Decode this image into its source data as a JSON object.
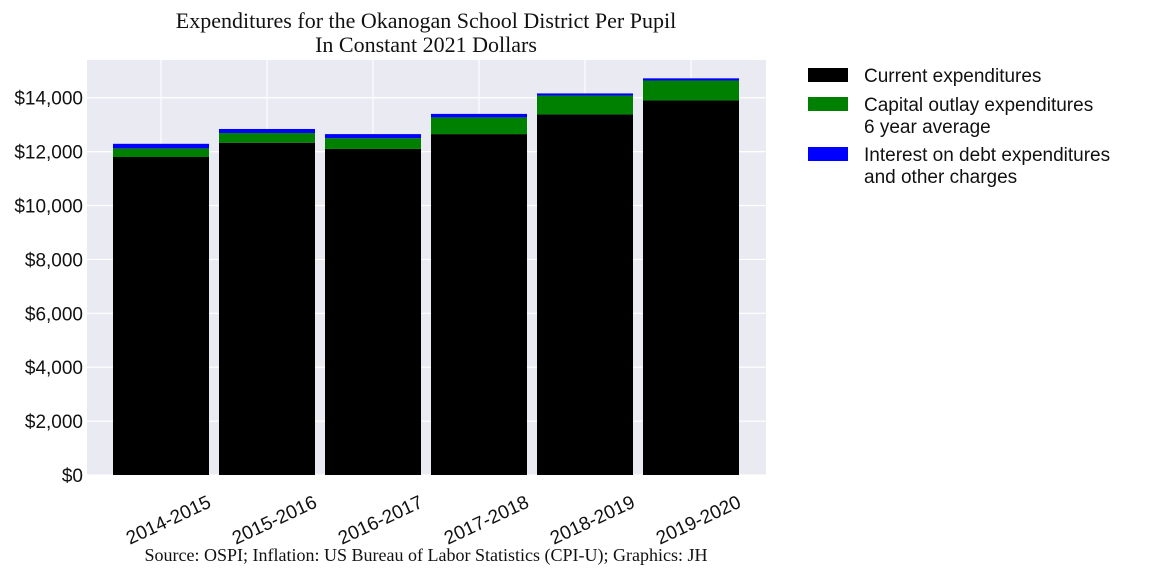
{
  "chart_data": {
    "type": "bar",
    "stacked": true,
    "title_lines": [
      "Expenditures for the Okanogan School District Per Pupil",
      "In Constant 2021 Dollars"
    ],
    "xlabel": "",
    "ylabel": "",
    "categories": [
      "2014-2015",
      "2015-2016",
      "2016-2017",
      "2017-2018",
      "2018-2019",
      "2019-2020"
    ],
    "series": [
      {
        "name_lines": [
          "Current expenditures"
        ],
        "color": "#000000",
        "values": [
          11800,
          12330,
          12100,
          12650,
          13380,
          13900
        ]
      },
      {
        "name_lines": [
          "Capital outlay expenditures",
          "6 year average"
        ],
        "color": "#008000",
        "values": [
          320,
          360,
          400,
          620,
          700,
          740
        ]
      },
      {
        "name_lines": [
          "Interest on debt expenditures",
          "and other charges"
        ],
        "color": "#0000ff",
        "values": [
          170,
          150,
          150,
          130,
          80,
          80
        ]
      }
    ],
    "ylim": [
      0,
      15400
    ],
    "yticks": [
      0,
      2000,
      4000,
      6000,
      8000,
      10000,
      12000,
      14000
    ],
    "ytick_labels": [
      "$0",
      "$2,000",
      "$4,000",
      "$6,000",
      "$8,000",
      "$10,000",
      "$12,000",
      "$14,000"
    ],
    "grid": true,
    "legend_position": "outside-right",
    "source": "Source: OSPI; Inflation: US Bureau of Labor Statistics (CPI-U); Graphics: JH",
    "plot_background": "#eaeaf2",
    "grid_color": "#ffffff"
  }
}
